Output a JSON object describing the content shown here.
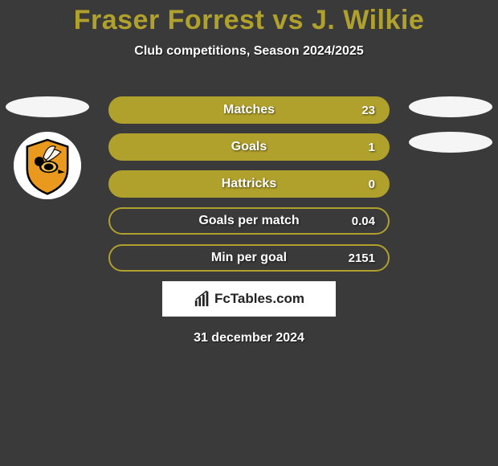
{
  "title": "Fraser Forrest vs J. Wilkie",
  "title_color": "#b0a02c",
  "subtitle": "Club competitions, Season 2024/2025",
  "date": "31 december 2024",
  "brand": "FcTables.com",
  "background_color": "#3a3a3a",
  "ellipse_color": "#f5f5f5",
  "stats": [
    {
      "label": "Matches",
      "value": "23",
      "border": "#b0a02c",
      "fill": "#b0a02c"
    },
    {
      "label": "Goals",
      "value": "1",
      "border": "#b0a02c",
      "fill": "#b0a02c"
    },
    {
      "label": "Hattricks",
      "value": "0",
      "border": "#b0a02c",
      "fill": "#b0a02c"
    },
    {
      "label": "Goals per match",
      "value": "0.04",
      "border": "#b0a02c",
      "fill": "transparent"
    },
    {
      "label": "Min per goal",
      "value": "2151",
      "border": "#b0a02c",
      "fill": "transparent"
    }
  ],
  "left_player": {
    "ellipses": 1,
    "crest": true
  },
  "right_player": {
    "ellipses": 2,
    "crest": false
  },
  "crest_colors": {
    "shield": "#e8991e",
    "outline": "#000000",
    "wasp_body": "#000000",
    "wasp_stripe": "#f3c34a"
  }
}
